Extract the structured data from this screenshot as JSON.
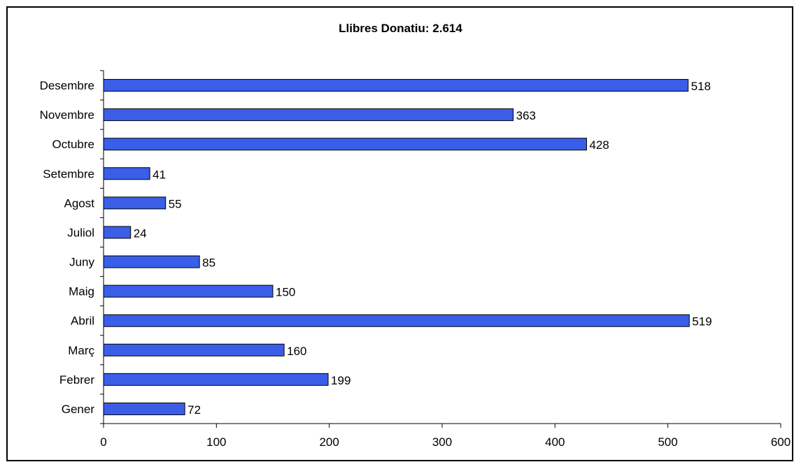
{
  "chart_data": {
    "type": "bar",
    "orientation": "horizontal",
    "title": "Llibres Donatiu: 2.614",
    "categories": [
      "Gener",
      "Febrer",
      "Març",
      "Abril",
      "Maig",
      "Juny",
      "Juliol",
      "Agost",
      "Setembre",
      "Octubre",
      "Novembre",
      "Desembre"
    ],
    "values": [
      72,
      199,
      160,
      519,
      150,
      85,
      24,
      55,
      41,
      428,
      363,
      518
    ],
    "xlim": [
      0,
      600
    ],
    "xticks": [
      0,
      100,
      200,
      300,
      400,
      500,
      600
    ],
    "grid": false,
    "legend": "none",
    "bar_color": "#3a5ee8",
    "bar_edge_color": "#000000"
  }
}
